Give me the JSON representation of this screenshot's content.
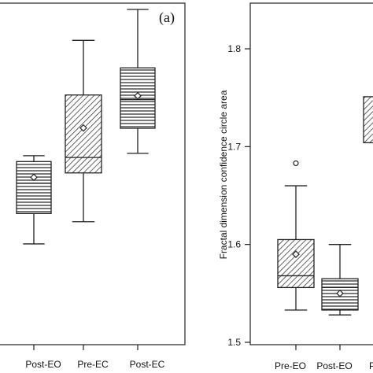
{
  "chart_data": [
    {
      "type": "box",
      "panel_label": "(a)",
      "categories": [
        "Post-EO",
        "Pre-EC",
        "Post-EC"
      ],
      "ylabel": "",
      "ylim": [
        0.0,
        1.0
      ],
      "y_ticks_visible": false,
      "boxes": [
        {
          "category": "Post-EO",
          "whisker_low": 0.197,
          "q1": 0.301,
          "median": 0.405,
          "q3": 0.479,
          "whisker_high": 0.499,
          "mean": 0.425,
          "pattern": "horizontal"
        },
        {
          "category": "Pre-EC",
          "whisker_low": 0.273,
          "q1": 0.44,
          "median": 0.493,
          "q3": 0.707,
          "whisker_high": 0.894,
          "mean": 0.594,
          "pattern": "diagonal"
        },
        {
          "category": "Post-EC",
          "whisker_low": 0.507,
          "q1": 0.593,
          "median": 0.691,
          "q3": 0.8,
          "whisker_high": 1.0,
          "mean": 0.704,
          "pattern": "horizontal"
        }
      ]
    },
    {
      "type": "box",
      "ylabel": "Fractal dimension confidence circle area",
      "ylim": [
        1.5,
        1.85
      ],
      "yticks": [
        "1.5",
        "1.6",
        "1.7",
        "1.8"
      ],
      "ytick_values": [
        1.5,
        1.6,
        1.7,
        1.8
      ],
      "categories": [
        "Pre-EO",
        "Post-EO",
        "P"
      ],
      "boxes": [
        {
          "category": "Pre-EO",
          "whisker_low": 1.533,
          "q1": 1.556,
          "median": 1.568,
          "q3": 1.605,
          "whisker_high": 1.66,
          "mean": 1.59,
          "outliers": [
            1.683
          ],
          "pattern": "diagonal"
        },
        {
          "category": "Post-EO",
          "whisker_low": 1.528,
          "q1": 1.533,
          "median": 1.556,
          "q3": 1.565,
          "whisker_high": 1.6,
          "mean": 1.55,
          "outliers": [],
          "pattern": "horizontal"
        },
        {
          "category": "P",
          "q1": 1.704,
          "q3": 1.751,
          "mean": 1.728,
          "pattern": "diagonal",
          "partial": true
        }
      ]
    }
  ]
}
